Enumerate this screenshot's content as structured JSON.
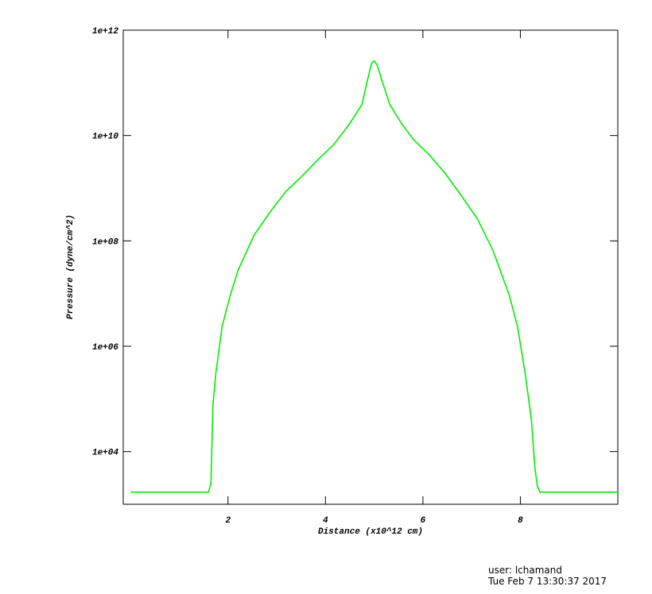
{
  "chart_data": {
    "type": "line",
    "xlabel": "Distance (x10^12 cm)",
    "ylabel": "Pressure (dyne/cm^2)",
    "xlim": [
      -0.15,
      10
    ],
    "ylim": [
      1000,
      1000000000000
    ],
    "log_y": true,
    "xticks": [
      2,
      4,
      6,
      8
    ],
    "yticks": [
      {
        "value": 10000,
        "label": "1e+04"
      },
      {
        "value": 1000000,
        "label": "1e+06"
      },
      {
        "value": 100000000,
        "label": "1e+08"
      },
      {
        "value": 10000000000,
        "label": "1e+10"
      },
      {
        "value": 1000000000000,
        "label": "1e+12"
      }
    ],
    "series": [
      {
        "color": "#00ee00",
        "x": [
          0,
          1.6,
          1.65,
          1.69,
          1.75,
          1.88,
          2.05,
          2.21,
          2.54,
          2.87,
          3.19,
          3.52,
          3.85,
          4.18,
          4.5,
          4.75,
          4.86,
          4.95,
          5.0,
          5.06,
          5.16,
          5.32,
          5.56,
          5.81,
          6.14,
          6.46,
          6.79,
          7.12,
          7.44,
          7.77,
          7.94,
          8.1,
          8.23,
          8.3,
          8.35,
          8.4,
          10
        ],
        "values": [
          1700,
          1700,
          2500,
          76000,
          300000,
          2400000,
          9500000,
          28000000,
          130000000,
          360000000,
          870000000,
          1700000000,
          3500000000,
          6900000000,
          17000000000,
          39000000000,
          110000000000,
          240000000000,
          260000000000,
          220000000000,
          110000000000,
          39000000000,
          17000000000,
          8300000000,
          4200000000,
          1900000000,
          720000000,
          260000000,
          65000000,
          9500000,
          2400000,
          300000,
          38000,
          4800,
          2200,
          1700,
          1700
        ]
      }
    ],
    "annotations": [
      "user: lchamand",
      "Tue Feb  7 13:30:37 2017"
    ]
  }
}
